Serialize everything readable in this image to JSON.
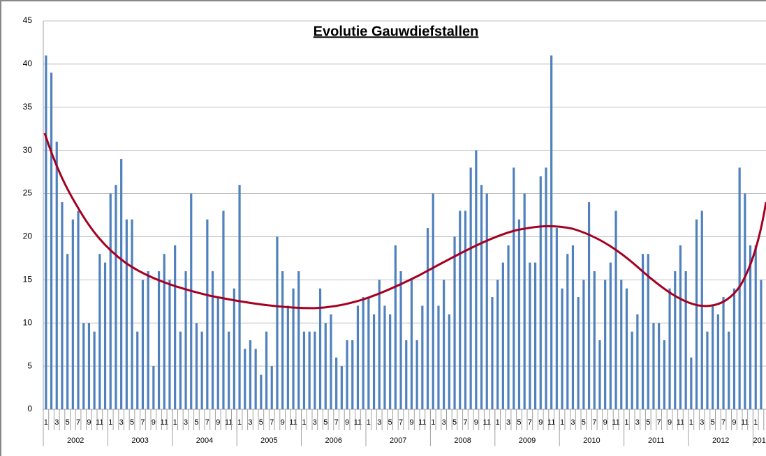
{
  "chart_data": {
    "type": "bar",
    "title": "Evolutie Gauwdiefstallen",
    "color": "#4f81bd",
    "grid": true,
    "ylim": [
      0,
      45
    ],
    "yticks": [
      0,
      5,
      10,
      15,
      20,
      25,
      30,
      35,
      40,
      45
    ],
    "years": [
      "2002",
      "2003",
      "2004",
      "2005",
      "2006",
      "2007",
      "2008",
      "2009",
      "2010",
      "2011",
      "2012",
      "201"
    ],
    "categories": [
      "1",
      null,
      "3",
      null,
      "5",
      null,
      "7",
      null,
      "9",
      null,
      "11",
      null,
      "1",
      null,
      "3",
      null,
      "5",
      null,
      "7",
      null,
      "9",
      null,
      "11",
      null,
      "1",
      null,
      "3",
      null,
      "5",
      null,
      "7",
      null,
      "9",
      null,
      "11",
      null,
      "1",
      null,
      "3",
      null,
      "5",
      null,
      "7",
      null,
      "9",
      null,
      "11",
      null,
      "1",
      null,
      "3",
      null,
      "5",
      null,
      "7",
      null,
      "9",
      null,
      "11",
      null,
      "1",
      null,
      "3",
      null,
      "5",
      null,
      "7",
      null,
      "9",
      null,
      "11",
      null,
      "1",
      null,
      "3",
      null,
      "5",
      null,
      "7",
      null,
      "9",
      null,
      "11",
      null,
      "1",
      null,
      "3",
      null,
      "5",
      null,
      "7",
      null,
      "9",
      null,
      "11",
      null,
      "1",
      null,
      "3",
      null,
      "5",
      null,
      "7",
      null,
      "9",
      null,
      "11",
      null,
      "1",
      null,
      "3",
      null,
      "5",
      null,
      "7",
      null,
      "9",
      null,
      "11",
      null,
      "1",
      null,
      "3",
      null,
      "5",
      null,
      "7",
      null,
      "9",
      null,
      "11",
      null,
      "1",
      null
    ],
    "values": [
      41,
      39,
      31,
      24,
      18,
      22,
      23,
      10,
      10,
      9,
      18,
      17,
      25,
      26,
      29,
      22,
      22,
      9,
      15,
      16,
      5,
      16,
      18,
      15,
      19,
      9,
      16,
      25,
      10,
      9,
      22,
      16,
      13,
      23,
      9,
      14,
      26,
      7,
      8,
      7,
      4,
      9,
      5,
      20,
      16,
      12,
      14,
      16,
      9,
      9,
      9,
      14,
      10,
      11,
      6,
      5,
      8,
      8,
      12,
      13,
      13,
      11,
      15,
      12,
      11,
      19,
      16,
      8,
      15,
      8,
      12,
      21,
      25,
      12,
      15,
      11,
      20,
      23,
      23,
      28,
      30,
      26,
      25,
      13,
      15,
      17,
      19,
      28,
      22,
      25,
      17,
      17,
      27,
      28,
      41,
      21,
      14,
      18,
      19,
      13,
      15,
      24,
      16,
      8,
      15,
      17,
      23,
      15,
      14,
      9,
      11,
      18,
      18,
      10,
      10,
      8,
      14,
      16,
      19,
      16,
      6,
      22,
      23,
      9,
      12,
      11,
      13,
      9,
      14,
      28,
      25,
      19,
      19,
      15
    ]
  }
}
